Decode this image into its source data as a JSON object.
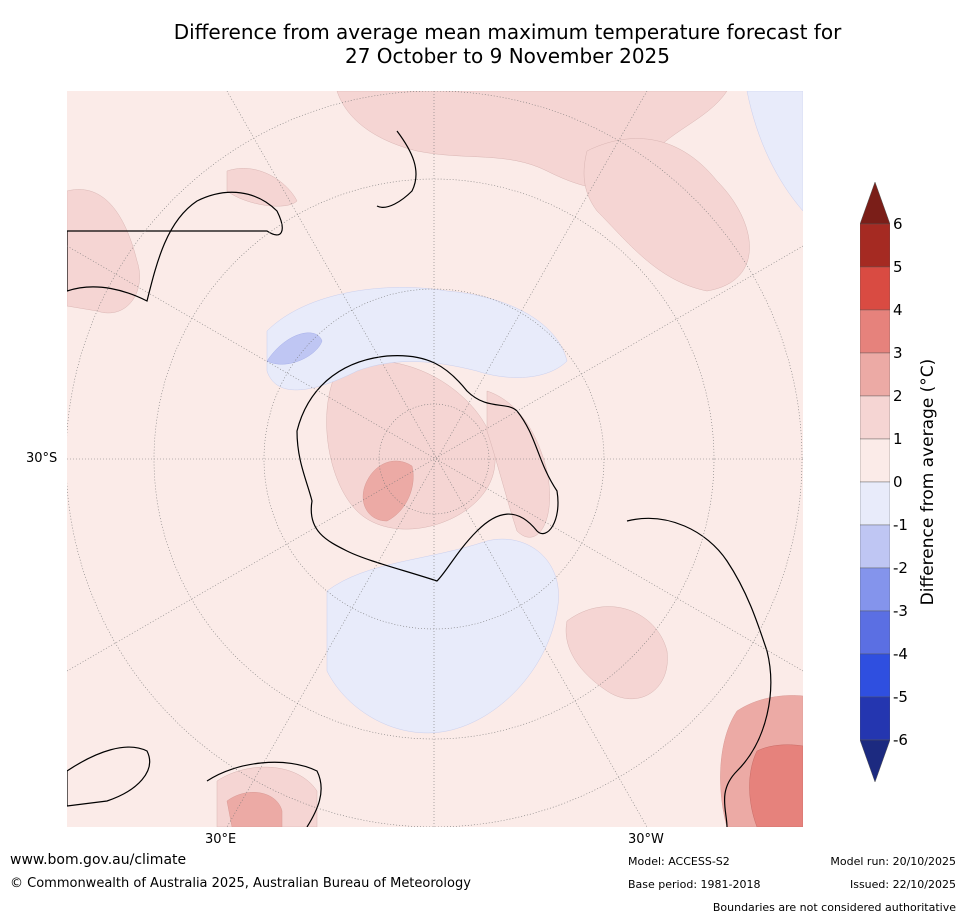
{
  "title": {
    "line1": "Difference from average mean maximum temperature forecast for",
    "line2": "27 October to 9 November 2025"
  },
  "map": {
    "lat_label": "30°S",
    "lon_label_left": "30°E",
    "lon_label_right": "30°W",
    "palette": {
      "bg_warm": "#fbebe8",
      "warm1": "#f5d5d3",
      "warm2": "#ecaaa5",
      "warm3": "#e6827c",
      "cool1": "#e8ebfa",
      "cool2": "#bfc6f3",
      "coast": "#000000"
    }
  },
  "colorbar": {
    "label": "Difference from average (°C)",
    "ticks": [
      "6",
      "5",
      "4",
      "3",
      "2",
      "1",
      "0",
      "-1",
      "-2",
      "-3",
      "-4",
      "-5",
      "-6"
    ],
    "colors": [
      "#a52a22",
      "#d94b42",
      "#e6827c",
      "#ecaaa5",
      "#f5d5d3",
      "#fbebe8",
      "#e8ebfa",
      "#bfc6f3",
      "#8494ec",
      "#5b6fe3",
      "#2f4fe0",
      "#2436b0"
    ],
    "over_color": "#7a1e18",
    "under_color": "#1c2a80"
  },
  "footer": {
    "url": "www.bom.gov.au/climate",
    "copyright": "© Commonwealth of Australia 2025, Australian Bureau of Meteorology",
    "model": "Model: ACCESS-S2",
    "base_period": "Base period: 1981-2018",
    "model_run": "Model run: 20/10/2025",
    "issued": "Issued: 22/10/2025",
    "boundaries": "Boundaries are not considered authoritative"
  }
}
